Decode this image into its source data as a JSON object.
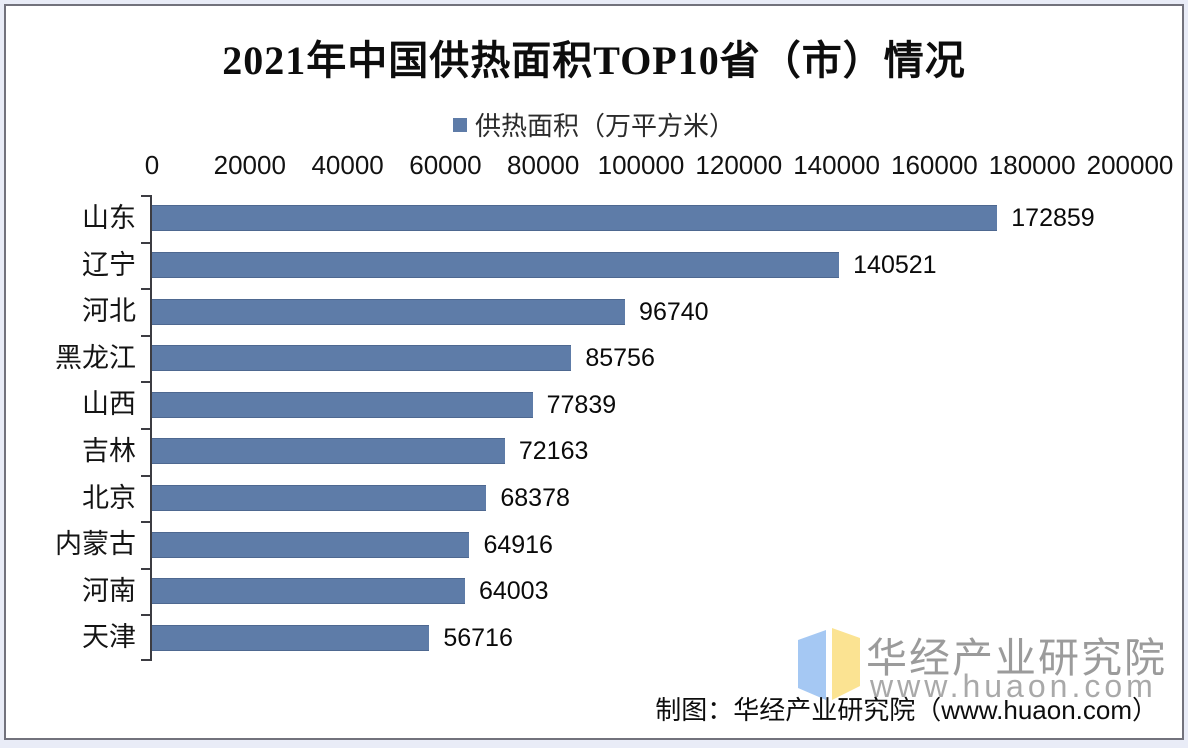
{
  "chart_data": {
    "type": "bar",
    "orientation": "horizontal",
    "title": "2021年中国供热面积TOP10省（市）情况",
    "legend": "供热面积（万平方米）",
    "categories": [
      "山东",
      "辽宁",
      "河北",
      "黑龙江",
      "山西",
      "吉林",
      "北京",
      "内蒙古",
      "河南",
      "天津"
    ],
    "values": [
      172859,
      140521,
      96740,
      85756,
      77839,
      72163,
      68378,
      64916,
      64003,
      56716
    ],
    "x_ticks": [
      0,
      20000,
      40000,
      60000,
      80000,
      100000,
      120000,
      140000,
      160000,
      180000,
      200000
    ],
    "xlim": [
      0,
      200000
    ],
    "value_labels_shown": true,
    "grid": false,
    "legend_position": "top-center",
    "bar_color": "#5e7ca8"
  },
  "watermark": {
    "brand": "华经产业研究院",
    "site": "www.huaon.com",
    "logo_blue": "#a5c8f3",
    "logo_yellow": "#fbe392",
    "text_color": "#9b9b9b"
  },
  "footer": {
    "credit": "制图：华经产业研究院（www.huaon.com）"
  }
}
